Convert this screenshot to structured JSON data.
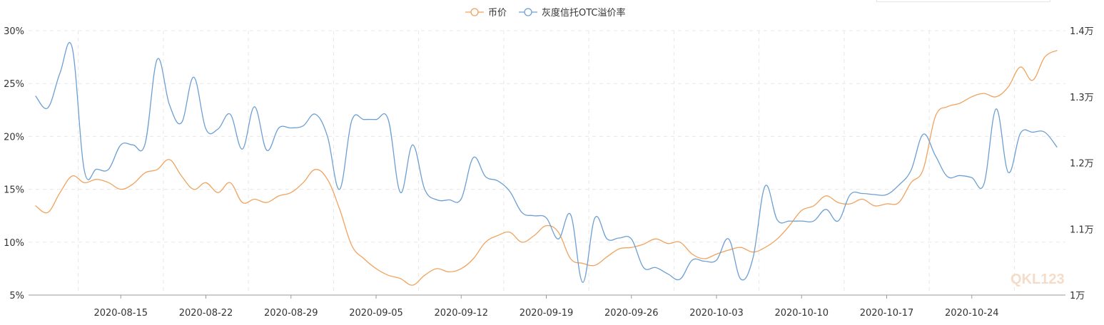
{
  "chart_data": {
    "type": "line",
    "legend": {
      "placement": "top-center",
      "items": [
        {
          "name": "币价",
          "color": "#f0a35e"
        },
        {
          "name": "灰度信托OTC溢价率",
          "color": "#6c9fd2"
        }
      ]
    },
    "watermark": "QKL123",
    "x_start": "2020-08-08",
    "x_end": "2020-10-31",
    "xtick_labels": [
      {
        "date": "2020-08-15",
        "label": "2020-08-15"
      },
      {
        "date": "2020-08-22",
        "label": "2020-08-22"
      },
      {
        "date": "2020-08-29",
        "label": "2020-08-29"
      },
      {
        "date": "2020-09-05",
        "label": "2020-09-05"
      },
      {
        "date": "2020-09-12",
        "label": "2020-09-12"
      },
      {
        "date": "2020-09-19",
        "label": "2020-09-19"
      },
      {
        "date": "2020-09-26",
        "label": "2020-09-26"
      },
      {
        "date": "2020-10-03",
        "label": "2020-10-03"
      },
      {
        "date": "2020-10-10",
        "label": "2020-10-10"
      },
      {
        "date": "2020-10-17",
        "label": "2020-10-17"
      },
      {
        "date": "2020-10-24",
        "label": "2020-10-24"
      }
    ],
    "y_left": {
      "ylim": [
        5,
        30
      ],
      "ticks": [
        {
          "value": 5,
          "label": "5%"
        },
        {
          "value": 10,
          "label": "10%"
        },
        {
          "value": 15,
          "label": "15%"
        },
        {
          "value": 20,
          "label": "20%"
        },
        {
          "value": 25,
          "label": "25%"
        },
        {
          "value": 30,
          "label": "30%"
        }
      ]
    },
    "y_right": {
      "ylim": [
        10000,
        14000
      ],
      "ticks": [
        {
          "value": 10000,
          "label": "1万"
        },
        {
          "value": 11000,
          "label": "1.1万"
        },
        {
          "value": 12000,
          "label": "1.2万"
        },
        {
          "value": 13000,
          "label": "1.3万"
        },
        {
          "value": 14000,
          "label": "1.4万"
        }
      ]
    },
    "grid": true,
    "series": [
      {
        "name": "币价",
        "axis": "right",
        "color": "#f0a35e",
        "points": [
          [
            "2020-08-08",
            11350
          ],
          [
            "2020-08-09",
            11250
          ],
          [
            "2020-08-10",
            11550
          ],
          [
            "2020-08-11",
            11800
          ],
          [
            "2020-08-12",
            11700
          ],
          [
            "2020-08-13",
            11750
          ],
          [
            "2020-08-14",
            11700
          ],
          [
            "2020-08-15",
            11600
          ],
          [
            "2020-08-16",
            11680
          ],
          [
            "2020-08-17",
            11850
          ],
          [
            "2020-08-18",
            11900
          ],
          [
            "2020-08-19",
            12050
          ],
          [
            "2020-08-20",
            11800
          ],
          [
            "2020-08-21",
            11600
          ],
          [
            "2020-08-22",
            11700
          ],
          [
            "2020-08-23",
            11550
          ],
          [
            "2020-08-24",
            11700
          ],
          [
            "2020-08-25",
            11400
          ],
          [
            "2020-08-26",
            11450
          ],
          [
            "2020-08-27",
            11400
          ],
          [
            "2020-08-28",
            11500
          ],
          [
            "2020-08-29",
            11550
          ],
          [
            "2020-08-30",
            11700
          ],
          [
            "2020-08-31",
            11900
          ],
          [
            "2020-09-01",
            11750
          ],
          [
            "2020-09-02",
            11300
          ],
          [
            "2020-09-03",
            10750
          ],
          [
            "2020-09-04",
            10550
          ],
          [
            "2020-09-05",
            10400
          ],
          [
            "2020-09-06",
            10300
          ],
          [
            "2020-09-07",
            10250
          ],
          [
            "2020-09-08",
            10150
          ],
          [
            "2020-09-09",
            10300
          ],
          [
            "2020-09-10",
            10400
          ],
          [
            "2020-09-11",
            10350
          ],
          [
            "2020-09-12",
            10400
          ],
          [
            "2020-09-13",
            10550
          ],
          [
            "2020-09-14",
            10800
          ],
          [
            "2020-09-15",
            10900
          ],
          [
            "2020-09-16",
            10950
          ],
          [
            "2020-09-17",
            10800
          ],
          [
            "2020-09-18",
            10900
          ],
          [
            "2020-09-19",
            11050
          ],
          [
            "2020-09-20",
            10950
          ],
          [
            "2020-09-21",
            10550
          ],
          [
            "2020-09-22",
            10480
          ],
          [
            "2020-09-23",
            10450
          ],
          [
            "2020-09-24",
            10580
          ],
          [
            "2020-09-25",
            10700
          ],
          [
            "2020-09-26",
            10720
          ],
          [
            "2020-09-27",
            10770
          ],
          [
            "2020-09-28",
            10850
          ],
          [
            "2020-09-29",
            10780
          ],
          [
            "2020-09-30",
            10800
          ],
          [
            "2020-10-01",
            10620
          ],
          [
            "2020-10-02",
            10550
          ],
          [
            "2020-10-03",
            10620
          ],
          [
            "2020-10-04",
            10680
          ],
          [
            "2020-10-05",
            10720
          ],
          [
            "2020-10-06",
            10650
          ],
          [
            "2020-10-07",
            10720
          ],
          [
            "2020-10-08",
            10850
          ],
          [
            "2020-10-09",
            11050
          ],
          [
            "2020-10-10",
            11280
          ],
          [
            "2020-10-11",
            11350
          ],
          [
            "2020-10-12",
            11500
          ],
          [
            "2020-10-13",
            11400
          ],
          [
            "2020-10-14",
            11380
          ],
          [
            "2020-10-15",
            11450
          ],
          [
            "2020-10-16",
            11350
          ],
          [
            "2020-10-17",
            11380
          ],
          [
            "2020-10-18",
            11400
          ],
          [
            "2020-10-19",
            11700
          ],
          [
            "2020-10-20",
            11900
          ],
          [
            "2020-10-21",
            12700
          ],
          [
            "2020-10-22",
            12850
          ],
          [
            "2020-10-23",
            12900
          ],
          [
            "2020-10-24",
            13000
          ],
          [
            "2020-10-25",
            13050
          ],
          [
            "2020-10-26",
            13000
          ],
          [
            "2020-10-27",
            13150
          ],
          [
            "2020-10-28",
            13450
          ],
          [
            "2020-10-29",
            13250
          ],
          [
            "2020-10-30",
            13600
          ],
          [
            "2020-10-31",
            13700
          ]
        ]
      },
      {
        "name": "灰度信托OTC溢价率",
        "axis": "left",
        "color": "#6c9fd2",
        "points": [
          [
            "2020-08-08",
            23.8
          ],
          [
            "2020-08-09",
            22.7
          ],
          [
            "2020-08-10",
            26.0
          ],
          [
            "2020-08-11",
            28.4
          ],
          [
            "2020-08-12",
            16.8
          ],
          [
            "2020-08-13",
            16.9
          ],
          [
            "2020-08-14",
            16.9
          ],
          [
            "2020-08-15",
            19.2
          ],
          [
            "2020-08-16",
            19.2
          ],
          [
            "2020-08-17",
            19.3
          ],
          [
            "2020-08-18",
            27.3
          ],
          [
            "2020-08-19",
            23.0
          ],
          [
            "2020-08-20",
            21.3
          ],
          [
            "2020-08-21",
            25.6
          ],
          [
            "2020-08-22",
            20.7
          ],
          [
            "2020-08-23",
            20.7
          ],
          [
            "2020-08-24",
            22.1
          ],
          [
            "2020-08-25",
            18.8
          ],
          [
            "2020-08-26",
            22.8
          ],
          [
            "2020-08-27",
            18.7
          ],
          [
            "2020-08-28",
            20.8
          ],
          [
            "2020-08-29",
            20.8
          ],
          [
            "2020-08-30",
            21.0
          ],
          [
            "2020-08-31",
            22.1
          ],
          [
            "2020-09-01",
            20.0
          ],
          [
            "2020-09-02",
            15.0
          ],
          [
            "2020-09-03",
            21.5
          ],
          [
            "2020-09-04",
            21.6
          ],
          [
            "2020-09-05",
            21.6
          ],
          [
            "2020-09-06",
            21.6
          ],
          [
            "2020-09-07",
            14.7
          ],
          [
            "2020-09-08",
            19.2
          ],
          [
            "2020-09-09",
            15.0
          ],
          [
            "2020-09-10",
            14.0
          ],
          [
            "2020-09-11",
            14.0
          ],
          [
            "2020-09-12",
            14.1
          ],
          [
            "2020-09-13",
            18.0
          ],
          [
            "2020-09-14",
            16.2
          ],
          [
            "2020-09-15",
            15.8
          ],
          [
            "2020-09-16",
            14.8
          ],
          [
            "2020-09-17",
            12.8
          ],
          [
            "2020-09-18",
            12.5
          ],
          [
            "2020-09-19",
            12.3
          ],
          [
            "2020-09-20",
            10.3
          ],
          [
            "2020-09-21",
            12.6
          ],
          [
            "2020-09-22",
            6.2
          ],
          [
            "2020-09-23",
            12.3
          ],
          [
            "2020-09-24",
            10.3
          ],
          [
            "2020-09-25",
            10.4
          ],
          [
            "2020-09-26",
            10.3
          ],
          [
            "2020-09-27",
            7.6
          ],
          [
            "2020-09-28",
            7.6
          ],
          [
            "2020-09-29",
            7.0
          ],
          [
            "2020-09-30",
            6.5
          ],
          [
            "2020-10-01",
            8.3
          ],
          [
            "2020-10-02",
            8.2
          ],
          [
            "2020-10-03",
            8.3
          ],
          [
            "2020-10-04",
            10.3
          ],
          [
            "2020-10-05",
            6.5
          ],
          [
            "2020-10-06",
            8.5
          ],
          [
            "2020-10-07",
            15.3
          ],
          [
            "2020-10-08",
            12.1
          ],
          [
            "2020-10-09",
            12.0
          ],
          [
            "2020-10-10",
            12.0
          ],
          [
            "2020-10-11",
            12.0
          ],
          [
            "2020-10-12",
            13.1
          ],
          [
            "2020-10-13",
            12.0
          ],
          [
            "2020-10-14",
            14.5
          ],
          [
            "2020-10-15",
            14.6
          ],
          [
            "2020-10-16",
            14.5
          ],
          [
            "2020-10-17",
            14.5
          ],
          [
            "2020-10-18",
            15.4
          ],
          [
            "2020-10-19",
            16.8
          ],
          [
            "2020-10-20",
            20.2
          ],
          [
            "2020-10-21",
            18.2
          ],
          [
            "2020-10-22",
            16.2
          ],
          [
            "2020-10-23",
            16.3
          ],
          [
            "2020-10-24",
            16.1
          ],
          [
            "2020-10-25",
            15.5
          ],
          [
            "2020-10-26",
            22.6
          ],
          [
            "2020-10-27",
            16.6
          ],
          [
            "2020-10-28",
            20.3
          ],
          [
            "2020-10-29",
            20.4
          ],
          [
            "2020-10-30",
            20.4
          ],
          [
            "2020-10-31",
            19.0
          ]
        ]
      }
    ]
  }
}
